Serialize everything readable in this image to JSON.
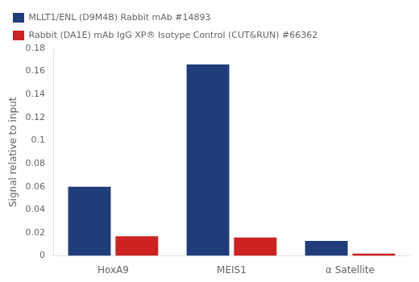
{
  "chart_data": {
    "type": "bar",
    "categories": [
      "HoxA9",
      "MEIS1",
      "α Satellite"
    ],
    "series": [
      {
        "name": "MLLT1/ENL (D9M4B) Rabbit mAb #14893",
        "color": "#1f3d7a",
        "values": [
          0.06,
          0.166,
          0.013
        ]
      },
      {
        "name": "Rabbit (DA1E) mAb IgG XP® Isotype Control (CUT&RUN) #66362",
        "color": "#cc2222",
        "values": [
          0.017,
          0.016,
          0.002
        ]
      }
    ],
    "y_label": "Signal relative to input",
    "ylim": [
      0,
      0.18
    ],
    "yticks": [
      0,
      0.02,
      0.04,
      0.06,
      0.08,
      0.1,
      0.12,
      0.14,
      0.16,
      0.18
    ],
    "grid": false,
    "legend": "top"
  }
}
